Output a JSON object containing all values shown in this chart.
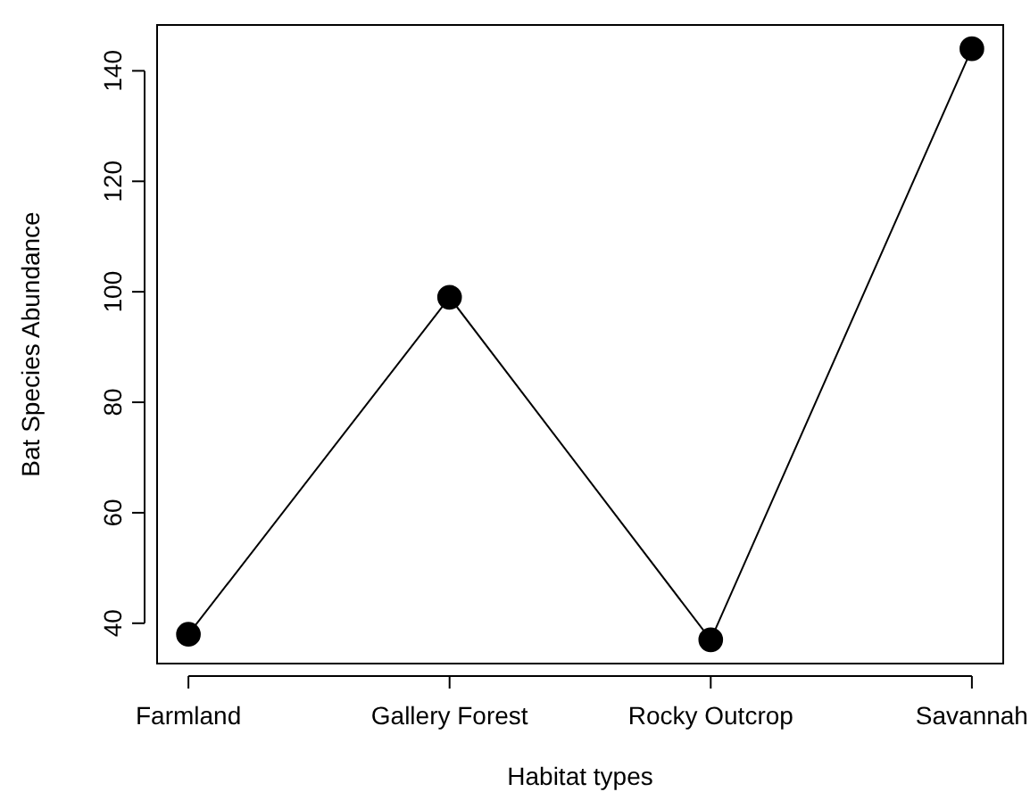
{
  "chart_data": {
    "type": "line",
    "xlabel": "Habitat types",
    "ylabel": "Bat Species Abundance",
    "categories": [
      "Farmland",
      "Gallery Forest",
      "Rocky Outcrop",
      "Savannah"
    ],
    "series": [
      {
        "color": "#000000",
        "values": [
          38,
          99,
          37,
          144
        ]
      }
    ],
    "ylim": [
      32.7,
      148.3
    ],
    "yticks": [
      40,
      60,
      80,
      100,
      120,
      140
    ],
    "marker": "circle",
    "line_style": "solid",
    "grid": false
  }
}
